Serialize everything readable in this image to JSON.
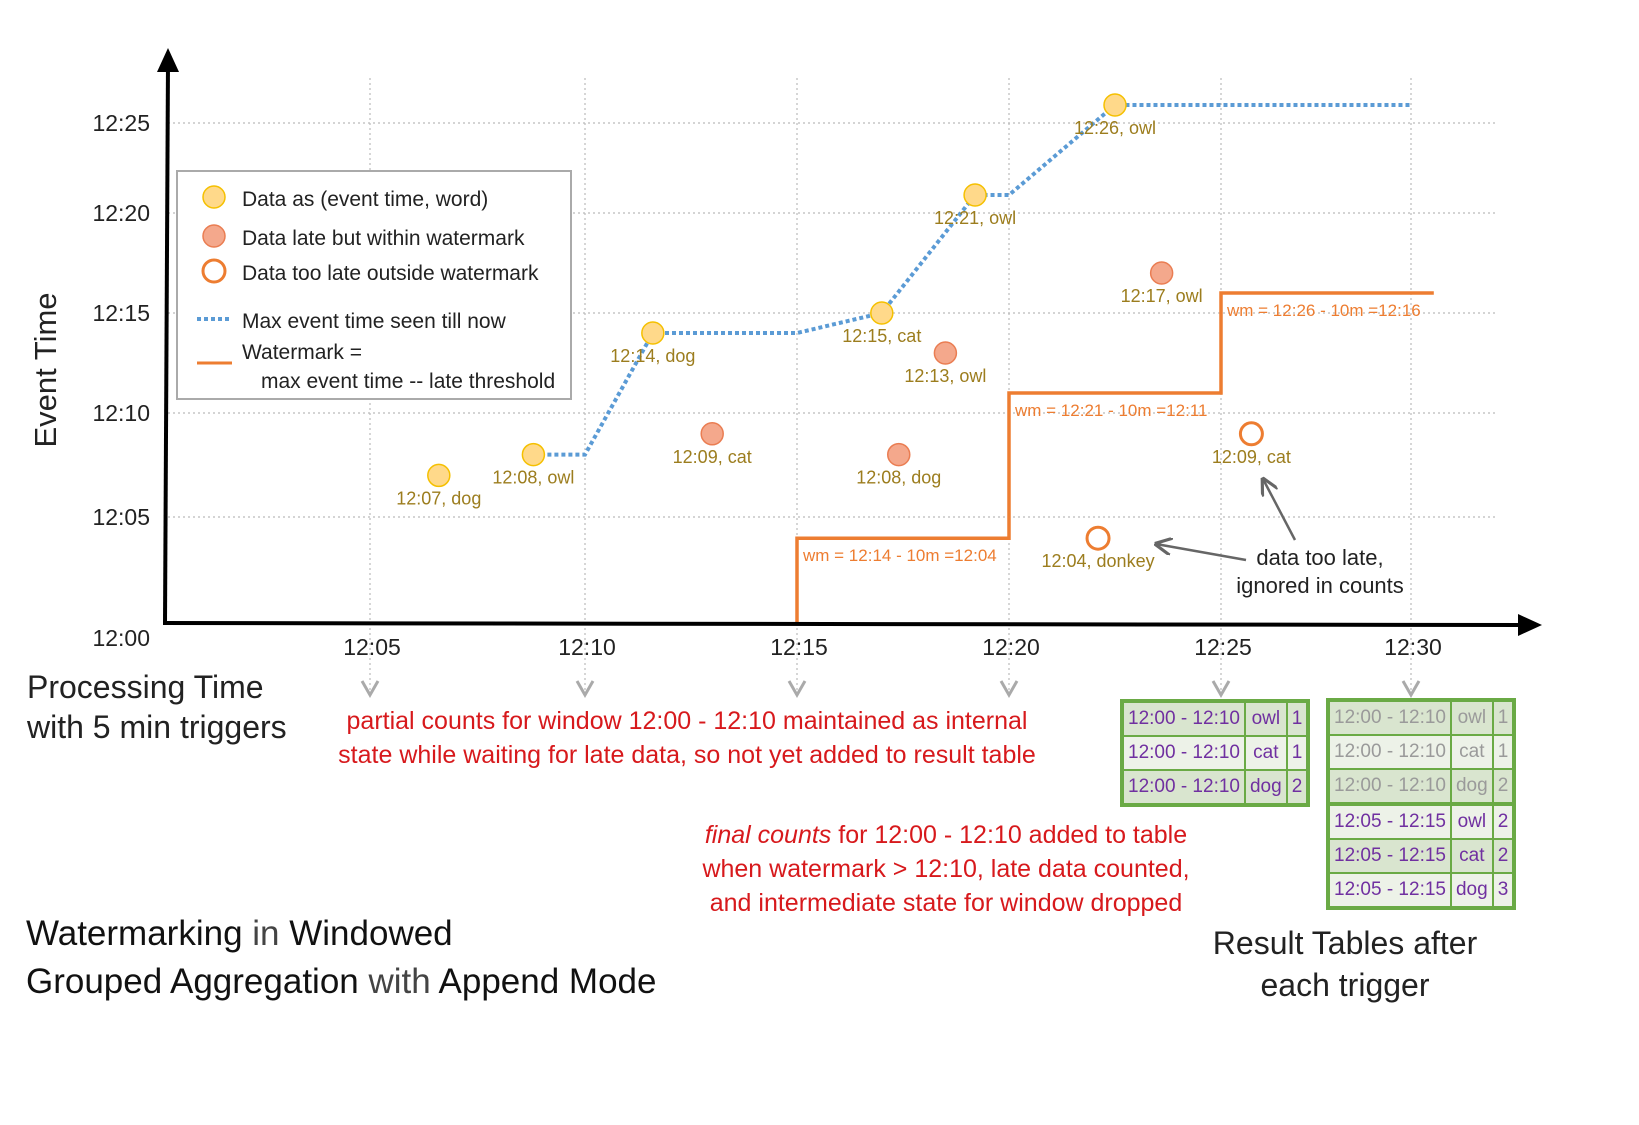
{
  "title": {
    "parts": [
      {
        "text": "Watermarking",
        "bold": true
      },
      {
        "text": " in ",
        "bold": false
      },
      {
        "text": "Windowed",
        "bold": true
      },
      {
        "text": "Grouped Aggregation",
        "bold": true
      },
      {
        "text": " with ",
        "bold": false
      },
      {
        "text": "Append Mode",
        "bold": true
      }
    ]
  },
  "axes": {
    "y_label": "Event Time",
    "x_label_line1": "Processing Time",
    "x_label_line2": "with 5 min triggers",
    "y_ticks": [
      "12:00",
      "12:05",
      "12:10",
      "12:15",
      "12:20",
      "12:25"
    ],
    "x_ticks": [
      "12:05",
      "12:10",
      "12:15",
      "12:20",
      "12:25",
      "12:30"
    ]
  },
  "legend": {
    "items": [
      {
        "label": "Data as (event time, word)",
        "type": "on-time"
      },
      {
        "label": "Data late but within watermark",
        "type": "late"
      },
      {
        "label": "Data too late outside watermark",
        "type": "too-late"
      },
      {
        "label": "Max event time seen till now",
        "type": "max-line"
      },
      {
        "label": "Watermark =",
        "label2": "max event time -- late threshold",
        "type": "watermark-line"
      }
    ]
  },
  "colors": {
    "on_time_fill": "#ffd98a",
    "on_time_stroke": "#f5c000",
    "late_fill": "#f4a88c",
    "late_stroke": "#ea7d52",
    "too_late": "#ed7d31",
    "max_line": "#5b9bd5",
    "watermark": "#ed7d31",
    "label": "#9c7d1e",
    "annotation_red": "#d7191c",
    "table_green": "#6aaa45",
    "table_text": "#7030a0"
  },
  "chart_data": {
    "type": "scatter",
    "points": [
      {
        "processing_time": "12:06:36",
        "event_time": "12:07",
        "word": "dog",
        "label": "12:07, dog",
        "type": "on-time"
      },
      {
        "processing_time": "12:08:48",
        "event_time": "12:08",
        "word": "owl",
        "label": "12:08, owl",
        "type": "on-time"
      },
      {
        "processing_time": "12:11:36",
        "event_time": "12:14",
        "word": "dog",
        "label": "12:14, dog",
        "type": "on-time"
      },
      {
        "processing_time": "12:13:00",
        "event_time": "12:09",
        "word": "cat",
        "label": "12:09, cat",
        "type": "late"
      },
      {
        "processing_time": "12:17:00",
        "event_time": "12:15",
        "word": "cat",
        "label": "12:15, cat",
        "type": "on-time"
      },
      {
        "processing_time": "12:17:24",
        "event_time": "12:08",
        "word": "dog",
        "label": "12:08, dog",
        "type": "late"
      },
      {
        "processing_time": "12:18:30",
        "event_time": "12:13",
        "word": "owl",
        "label": "12:13, owl",
        "type": "late"
      },
      {
        "processing_time": "12:19:12",
        "event_time": "12:21",
        "word": "owl",
        "label": "12:21, owl",
        "type": "on-time"
      },
      {
        "processing_time": "12:22:06",
        "event_time": "12:04",
        "word": "donkey",
        "label": "12:04, donkey",
        "type": "too-late"
      },
      {
        "processing_time": "12:22:30",
        "event_time": "12:26",
        "word": "owl",
        "label": "12:26, owl",
        "type": "on-time"
      },
      {
        "processing_time": "12:23:36",
        "event_time": "12:17",
        "word": "owl",
        "label": "12:17, owl",
        "type": "late"
      },
      {
        "processing_time": "12:25:48",
        "event_time": "12:09",
        "word": "cat",
        "label": "12:09, cat",
        "type": "too-late"
      }
    ],
    "max_event_time_line": [
      [
        "12:08:48",
        "12:08"
      ],
      [
        "12:10:00",
        "12:08"
      ],
      [
        "12:11:36",
        "12:14"
      ],
      [
        "12:15:00",
        "12:14"
      ],
      [
        "12:17:00",
        "12:15"
      ],
      [
        "12:19:12",
        "12:21"
      ],
      [
        "12:20:00",
        "12:21"
      ],
      [
        "12:22:30",
        "12:26"
      ],
      [
        "12:30:00",
        "12:26"
      ]
    ],
    "watermark_steps": [
      {
        "from": "12:15",
        "to": "12:20",
        "value": "12:04",
        "label": "wm = 12:14 - 10m =12:04"
      },
      {
        "from": "12:20",
        "to": "12:25",
        "value": "12:11",
        "label": "wm = 12:21 - 10m =12:11"
      },
      {
        "from": "12:25",
        "to": "12:30:36",
        "value": "12:16",
        "label": "wm = 12:26 - 10m =12:16"
      }
    ],
    "xlim": [
      "12:00",
      "12:30"
    ],
    "ylim": [
      "12:00",
      "12:27"
    ],
    "grid": true
  },
  "annotations": {
    "partial_line1": "partial counts for window 12:00 - 12:10 maintained as internal",
    "partial_line2": "state while waiting for late data, so not yet added  to result table",
    "final_em": "final counts",
    "final_line1_rest": " for 12:00 - 12:10 added to table",
    "final_line2": "when watermark > 12:10, late data counted,",
    "final_line3": "and intermediate state for window dropped",
    "too_late_line1": "data too late,",
    "too_late_line2": "ignored in counts",
    "result_line1": "Result Tables after",
    "result_line2": "each trigger"
  },
  "result_tables": [
    {
      "trigger": "12:25",
      "rows": [
        {
          "window": "12:00 - 12:10",
          "word": "owl",
          "count": "1",
          "old": false
        },
        {
          "window": "12:00 - 12:10",
          "word": "cat",
          "count": "1",
          "old": false
        },
        {
          "window": "12:00 - 12:10",
          "word": "dog",
          "count": "2",
          "old": false
        }
      ]
    },
    {
      "trigger": "12:30",
      "rows": [
        {
          "window": "12:00 - 12:10",
          "word": "owl",
          "count": "1",
          "old": true
        },
        {
          "window": "12:00 - 12:10",
          "word": "cat",
          "count": "1",
          "old": true
        },
        {
          "window": "12:00 - 12:10",
          "word": "dog",
          "count": "2",
          "old": true
        },
        {
          "window": "12:05 - 12:15",
          "word": "owl",
          "count": "2",
          "old": false
        },
        {
          "window": "12:05 - 12:15",
          "word": "cat",
          "count": "2",
          "old": false
        },
        {
          "window": "12:05 - 12:15",
          "word": "dog",
          "count": "3",
          "old": false
        }
      ]
    }
  ]
}
